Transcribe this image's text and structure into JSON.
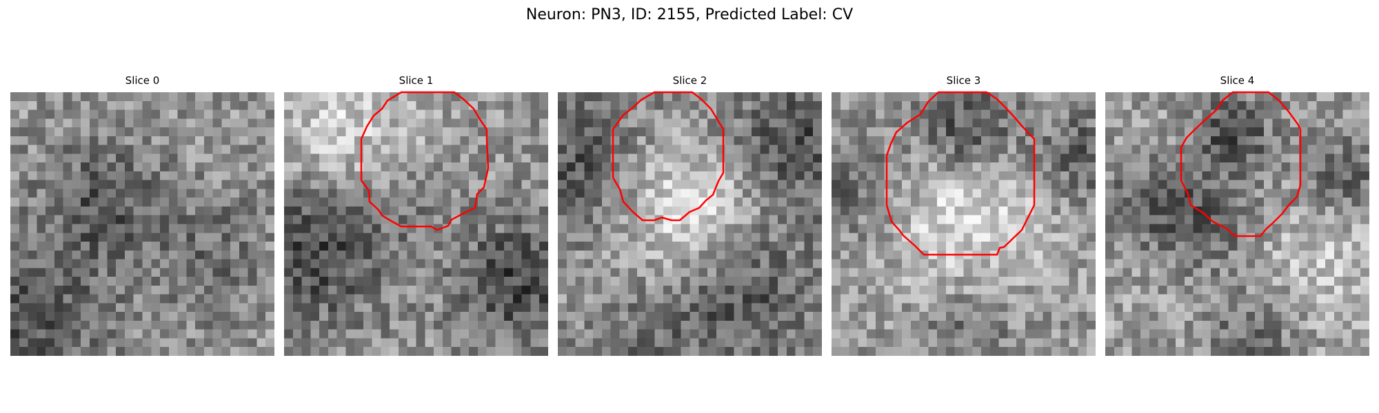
{
  "figure": {
    "title": "Neuron: PN3, ID: 2155, Predicted Label: CV"
  },
  "panels": [
    {
      "title": "Slice 0",
      "has_contour": false
    },
    {
      "title": "Slice 1",
      "has_contour": true
    },
    {
      "title": "Slice 2",
      "has_contour": true
    },
    {
      "title": "Slice 3",
      "has_contour": true
    },
    {
      "title": "Slice 4",
      "has_contour": true
    }
  ],
  "colors": {
    "contour": "#ff0000",
    "background": "#ffffff",
    "colormap": "gray"
  }
}
